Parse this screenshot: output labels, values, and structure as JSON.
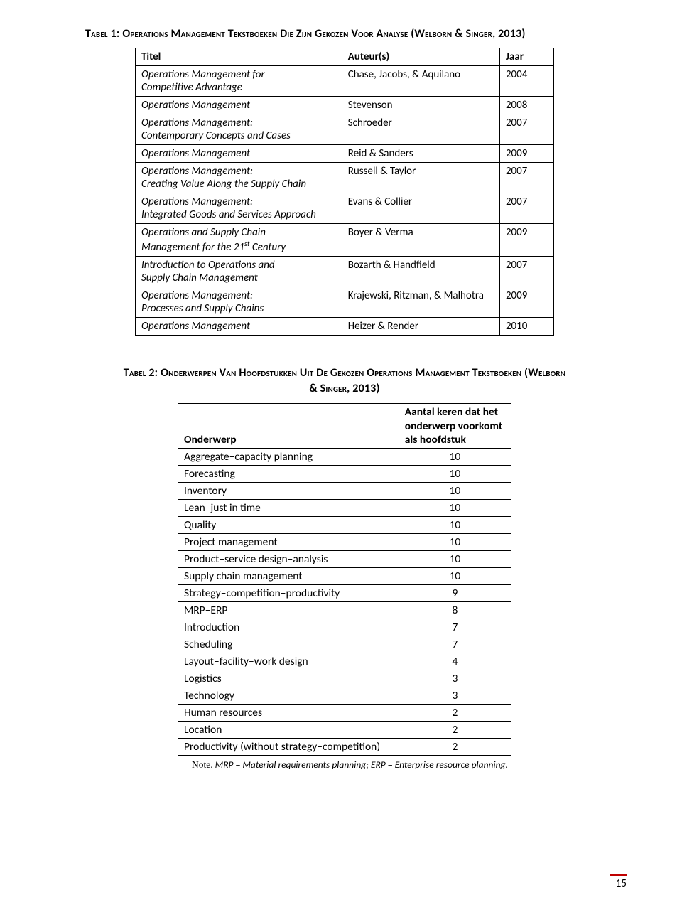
{
  "caption1": "Tabel 1: Operations Management Tekstboeken Die Zijn Gekozen Voor Analyse (Welborn & Singer, 2013)",
  "table1": {
    "headers": [
      "Titel",
      "Auteur(s)",
      "Jaar"
    ],
    "rows": [
      {
        "titleLines": [
          "Operations Management for",
          "Competitive Advantage"
        ],
        "author": "Chase, Jacobs, & Aquilano",
        "year": "2004"
      },
      {
        "titleLines": [
          "Operations Management"
        ],
        "author": "Stevenson",
        "year": "2008"
      },
      {
        "titleLines": [
          "Operations Management:",
          "Contemporary Concepts and Cases"
        ],
        "author": "Schroeder",
        "year": "2007"
      },
      {
        "titleLines": [
          "Operations Management"
        ],
        "author": "Reid & Sanders",
        "year": "2009"
      },
      {
        "titleLines": [
          "Operations Management:",
          "Creating Value Along the Supply Chain"
        ],
        "author": "Russell & Taylor",
        "year": "2007"
      },
      {
        "titleLines": [
          "Operations Management:",
          "Integrated Goods and Services Approach"
        ],
        "author": "Evans & Collier",
        "year": "2007"
      },
      {
        "titleLines": [
          "Operations and Supply Chain",
          "Management for the 21__SUP__ Century"
        ],
        "sup": "st",
        "author": "Boyer & Verma",
        "year": "2009"
      },
      {
        "titleLines": [
          "Introduction to Operations and",
          "Supply Chain Management"
        ],
        "author": "Bozarth & Handfield",
        "year": "2007"
      },
      {
        "titleLines": [
          "Operations Management:",
          "Processes and Supply Chains"
        ],
        "author": "Krajewski, Ritzman, & Malhotra",
        "year": "2009"
      },
      {
        "titleLines": [
          "Operations Management"
        ],
        "author": "Heizer & Render",
        "year": "2010"
      }
    ]
  },
  "caption2_l1": "Tabel 2: Onderwerpen Van Hoofdstukken Uit De Gekozen Operations Management Tekstboeken (Welborn",
  "caption2_l2": "& Singer, 2013)",
  "table2": {
    "head_topic": "Onderwerp",
    "head_count_l1": "Aantal keren dat het",
    "head_count_l2": "onderwerp voorkomt",
    "head_count_l3": "als hoofdstuk",
    "rows": [
      {
        "topic": "Aggregate–capacity planning",
        "count": "10"
      },
      {
        "topic": "Forecasting",
        "count": "10"
      },
      {
        "topic": "Inventory",
        "count": "10"
      },
      {
        "topic": "Lean–just in time",
        "count": "10"
      },
      {
        "topic": "Quality",
        "count": "10"
      },
      {
        "topic": "Project management",
        "count": "10"
      },
      {
        "topic": "Product–service design–analysis",
        "count": "10"
      },
      {
        "topic": "Supply chain management",
        "count": "10"
      },
      {
        "topic": "Strategy–competition–productivity",
        "count": "9"
      },
      {
        "topic": "MRP–ERP",
        "count": "8"
      },
      {
        "topic": "Introduction",
        "count": "7"
      },
      {
        "topic": "Scheduling",
        "count": "7"
      },
      {
        "topic": "Layout–facility–work design",
        "count": "4"
      },
      {
        "topic": "Logistics",
        "count": "3"
      },
      {
        "topic": "Technology",
        "count": "3"
      },
      {
        "topic": "Human resources",
        "count": "2"
      },
      {
        "topic": "Location",
        "count": "2"
      },
      {
        "topic": "Productivity (without strategy–competition)",
        "count": "2"
      }
    ]
  },
  "note_label": "Note.",
  "note_text": " MRP = Material requirements planning; ERP = Enterprise resource planning.",
  "pagenum": "15"
}
